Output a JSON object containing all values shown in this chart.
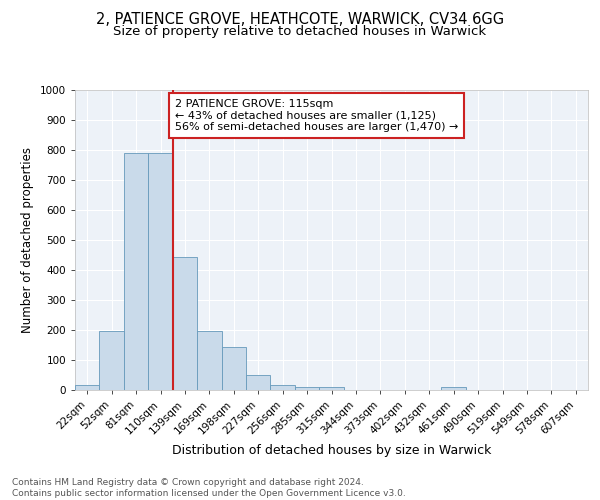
{
  "title1": "2, PATIENCE GROVE, HEATHCOTE, WARWICK, CV34 6GG",
  "title2": "Size of property relative to detached houses in Warwick",
  "xlabel": "Distribution of detached houses by size in Warwick",
  "ylabel": "Number of detached properties",
  "categories": [
    "22sqm",
    "52sqm",
    "81sqm",
    "110sqm",
    "139sqm",
    "169sqm",
    "198sqm",
    "227sqm",
    "256sqm",
    "285sqm",
    "315sqm",
    "344sqm",
    "373sqm",
    "402sqm",
    "432sqm",
    "461sqm",
    "490sqm",
    "519sqm",
    "549sqm",
    "578sqm",
    "607sqm"
  ],
  "values": [
    18,
    196,
    790,
    790,
    443,
    196,
    143,
    50,
    18,
    10,
    10,
    0,
    0,
    0,
    0,
    10,
    0,
    0,
    0,
    0,
    0
  ],
  "bar_color": "#c9daea",
  "bar_edge_color": "#6699bb",
  "vline_x_index": 3,
  "vline_color": "#cc2222",
  "annotation_text": "2 PATIENCE GROVE: 115sqm\n← 43% of detached houses are smaller (1,125)\n56% of semi-detached houses are larger (1,470) →",
  "annotation_box_facecolor": "#ffffff",
  "annotation_box_edgecolor": "#cc2222",
  "ylim": [
    0,
    1000
  ],
  "yticks": [
    0,
    100,
    200,
    300,
    400,
    500,
    600,
    700,
    800,
    900,
    1000
  ],
  "footer_text": "Contains HM Land Registry data © Crown copyright and database right 2024.\nContains public sector information licensed under the Open Government Licence v3.0.",
  "bg_color": "#edf2f8",
  "grid_color": "#ffffff",
  "title1_fontsize": 10.5,
  "title2_fontsize": 9.5,
  "xlabel_fontsize": 9,
  "ylabel_fontsize": 8.5,
  "tick_fontsize": 7.5,
  "annotation_fontsize": 8,
  "footer_fontsize": 6.5
}
